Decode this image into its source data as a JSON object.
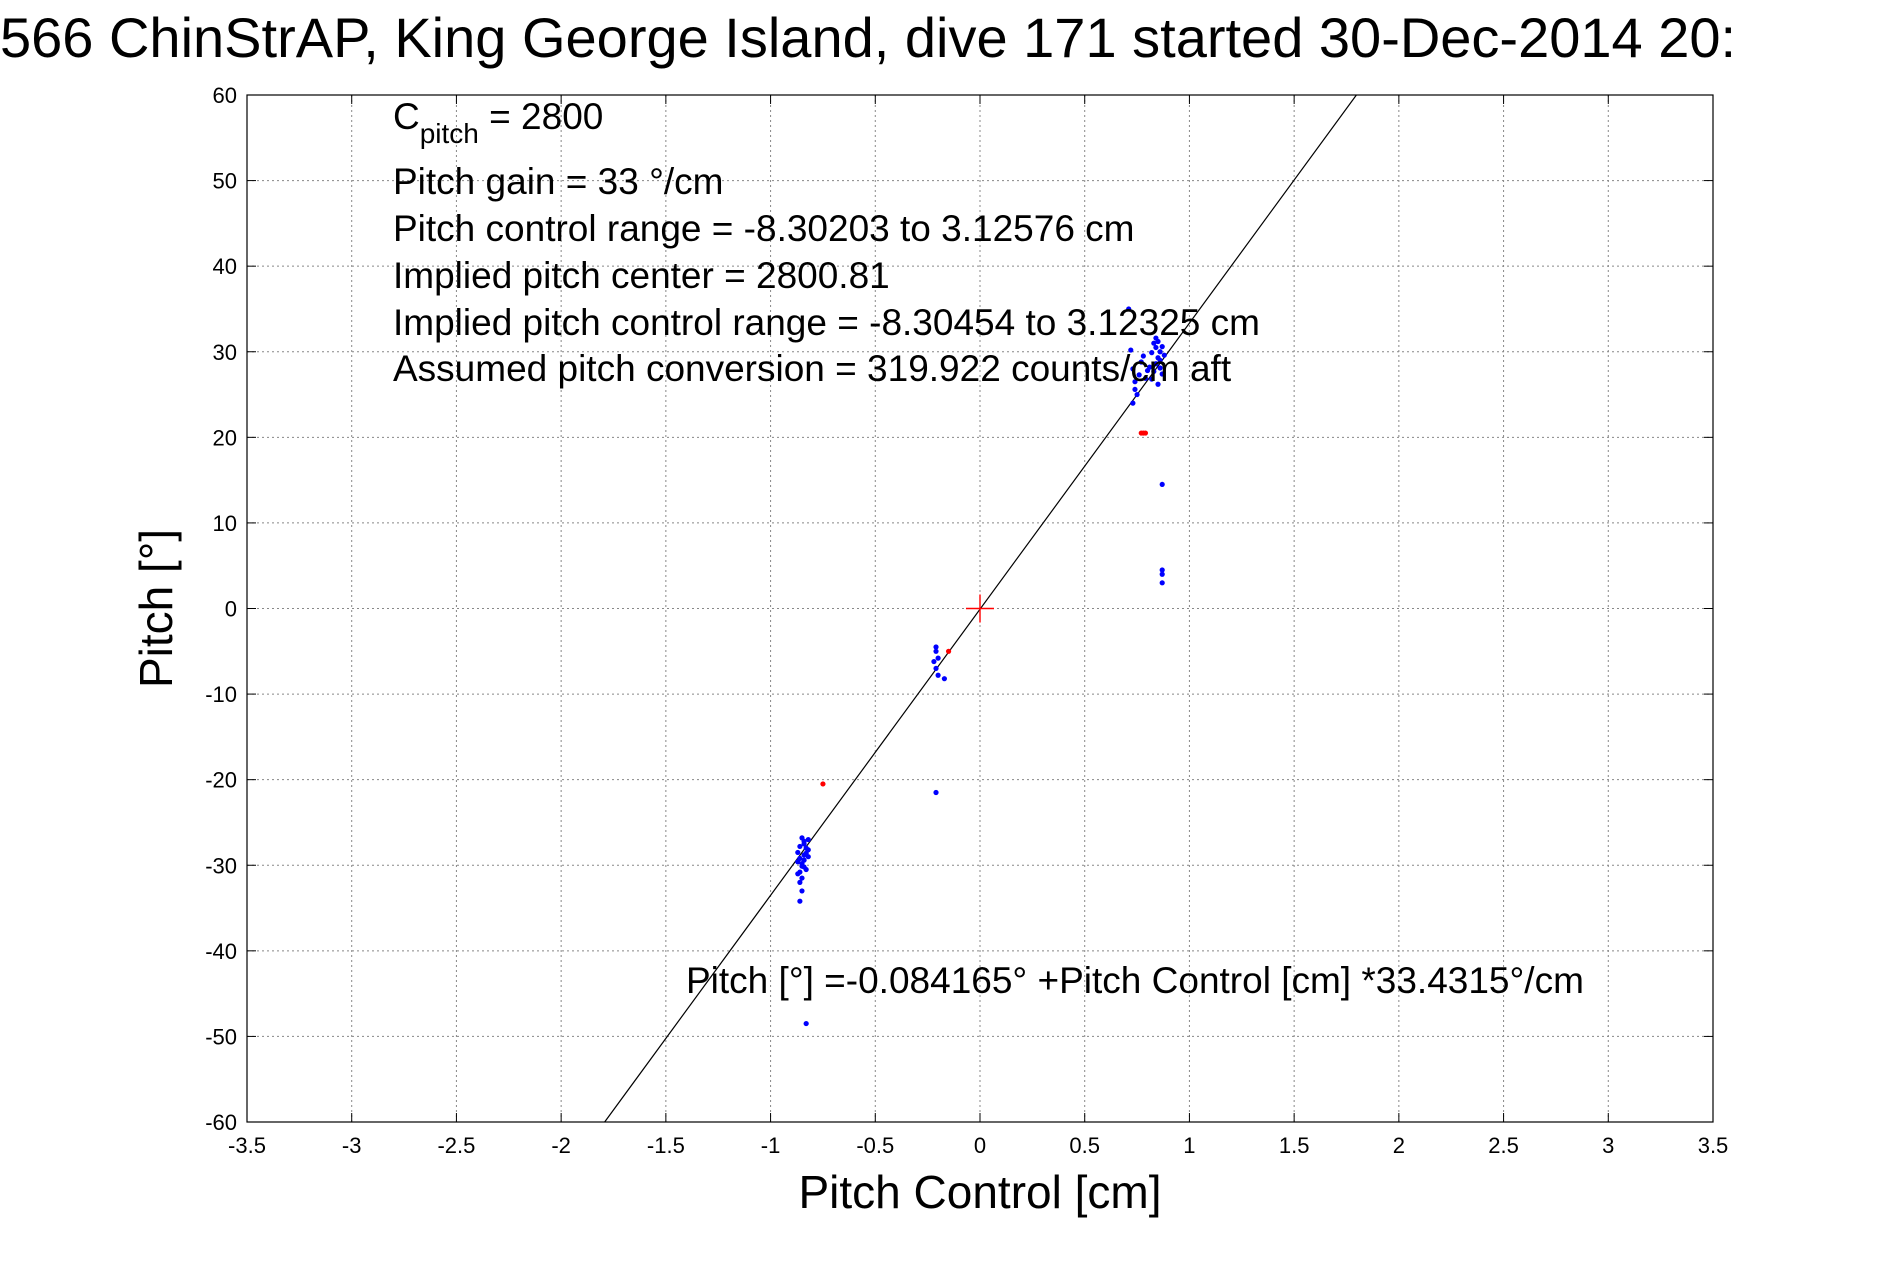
{
  "chart_data": {
    "type": "scatter",
    "title": "566 ChinStrAP, King George Island, dive 171 started 30-Dec-2014 20:",
    "xlabel": "Pitch Control [cm]",
    "ylabel": "Pitch [°]",
    "xlim": [
      -3.5,
      3.5
    ],
    "ylim": [
      -60,
      60
    ],
    "x_ticks": [
      -3.5,
      -3,
      -2.5,
      -2,
      -1.5,
      -1,
      -0.5,
      0,
      0.5,
      1,
      1.5,
      2,
      2.5,
      3,
      3.5
    ],
    "x_tick_labels": [
      "-3.5",
      "-3",
      "-2.5",
      "-2",
      "-1.5",
      "-1",
      "-0.5",
      "0",
      "0.5",
      "1",
      "1.5",
      "2",
      "2.5",
      "3",
      "3.5"
    ],
    "y_ticks": [
      -60,
      -50,
      -40,
      -30,
      -20,
      -10,
      0,
      10,
      20,
      30,
      40,
      50,
      60
    ],
    "y_tick_labels": [
      "-60",
      "-50",
      "-40",
      "-30",
      "-20",
      "-10",
      "0",
      "10",
      "20",
      "30",
      "40",
      "50",
      "60"
    ],
    "grid": true,
    "fit_line": {
      "intercept": -0.084165,
      "slope": 33.4315,
      "color": "#000000"
    },
    "center_marker": {
      "x": 0,
      "y": 0,
      "color": "#ff0000"
    },
    "annotations": {
      "c_pitch_main": "C",
      "c_pitch_sub": "pitch",
      "c_pitch_value": " = 2800",
      "pitch_gain": "Pitch gain = 33 °/cm",
      "control_range": "Pitch control range = -8.30203 to 3.12576 cm",
      "implied_center": "Implied pitch center = 2800.81",
      "implied_range": "Implied pitch control range = -8.30454 to 3.12325 cm",
      "conversion": "Assumed pitch conversion = 319.922 counts/cm aft",
      "fit_equation": "Pitch [°] =-0.084165° +Pitch Control [cm] *33.4315°/cm"
    },
    "series": [
      {
        "color": "#0000ff",
        "points": [
          [
            -0.87,
            -28.5
          ],
          [
            -0.86,
            -29.2
          ],
          [
            -0.85,
            -30.1
          ],
          [
            -0.84,
            -27.5
          ],
          [
            -0.83,
            -28.0
          ],
          [
            -0.82,
            -27.0
          ],
          [
            -0.87,
            -31.0
          ],
          [
            -0.86,
            -32.0
          ],
          [
            -0.85,
            -29.8
          ],
          [
            -0.84,
            -28.8
          ],
          [
            -0.83,
            -30.5
          ],
          [
            -0.86,
            -27.8
          ],
          [
            -0.85,
            -26.8
          ],
          [
            -0.84,
            -29.4
          ],
          [
            -0.83,
            -28.6
          ],
          [
            -0.82,
            -29.0
          ],
          [
            -0.86,
            -30.8
          ],
          [
            -0.85,
            -31.5
          ],
          [
            -0.84,
            -27.2
          ],
          [
            -0.82,
            -28.2
          ],
          [
            -0.86,
            -34.2
          ],
          [
            -0.85,
            -33.0
          ],
          [
            -0.83,
            -48.5
          ],
          [
            -0.87,
            -29.6
          ],
          [
            -0.84,
            -30.2
          ],
          [
            -0.21,
            -4.5
          ],
          [
            -0.21,
            -5.0
          ],
          [
            -0.2,
            -5.8
          ],
          [
            -0.21,
            -7.0
          ],
          [
            -0.2,
            -7.8
          ],
          [
            -0.22,
            -6.2
          ],
          [
            -0.17,
            -8.2
          ],
          [
            -0.21,
            -21.5
          ],
          [
            0.71,
            35.0
          ],
          [
            0.72,
            30.2
          ],
          [
            0.73,
            28.0
          ],
          [
            0.74,
            26.5
          ],
          [
            0.75,
            25.0
          ],
          [
            0.76,
            27.3
          ],
          [
            0.77,
            28.8
          ],
          [
            0.78,
            29.5
          ],
          [
            0.79,
            26.9
          ],
          [
            0.8,
            27.8
          ],
          [
            0.81,
            28.2
          ],
          [
            0.82,
            29.9
          ],
          [
            0.83,
            31.0
          ],
          [
            0.84,
            30.5
          ],
          [
            0.85,
            29.3
          ],
          [
            0.86,
            28.1
          ],
          [
            0.87,
            27.4
          ],
          [
            0.85,
            26.2
          ],
          [
            0.84,
            31.6
          ],
          [
            0.86,
            30.0
          ],
          [
            0.83,
            27.7
          ],
          [
            0.82,
            26.8
          ],
          [
            0.85,
            31.2
          ],
          [
            0.86,
            29.0
          ],
          [
            0.87,
            30.6
          ],
          [
            0.84,
            28.6
          ],
          [
            0.88,
            29.6
          ],
          [
            0.73,
            24.0
          ],
          [
            0.74,
            25.6
          ],
          [
            0.87,
            14.5
          ],
          [
            0.87,
            4.5
          ],
          [
            0.87,
            3.0
          ],
          [
            0.87,
            4.0
          ]
        ]
      },
      {
        "color": "#ff0000",
        "points": [
          [
            0.77,
            20.5
          ],
          [
            0.78,
            20.5
          ],
          [
            0.79,
            20.5
          ],
          [
            -0.15,
            -5.0
          ],
          [
            -0.75,
            -20.5
          ]
        ]
      }
    ]
  }
}
